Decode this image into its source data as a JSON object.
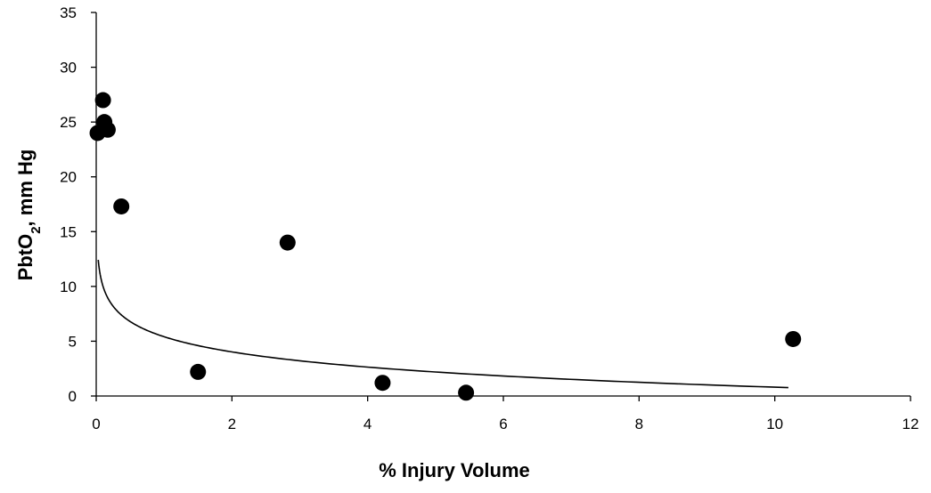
{
  "chart_data": {
    "type": "scatter",
    "xlabel": "% Injury Volume",
    "ylabel_main": "PbtO",
    "ylabel_sub": "2",
    "ylabel_tail": ", mm Hg",
    "xlim": [
      0,
      12
    ],
    "ylim": [
      0,
      35
    ],
    "x_ticks": [
      0,
      2,
      4,
      6,
      8,
      10,
      12
    ],
    "y_ticks": [
      0,
      5,
      10,
      15,
      20,
      25,
      30,
      35
    ],
    "grid": false,
    "legend": "none",
    "marker_color": "#000000",
    "points": [
      {
        "x": 0.02,
        "y": 24.0
      },
      {
        "x": 0.1,
        "y": 27.0
      },
      {
        "x": 0.12,
        "y": 25.0
      },
      {
        "x": 0.17,
        "y": 24.3
      },
      {
        "x": 0.37,
        "y": 17.3
      },
      {
        "x": 1.5,
        "y": 2.2
      },
      {
        "x": 2.82,
        "y": 14.0
      },
      {
        "x": 4.22,
        "y": 1.2
      },
      {
        "x": 5.45,
        "y": 0.3
      },
      {
        "x": 10.27,
        "y": 5.2
      }
    ],
    "trendline": {
      "type": "logarithmic",
      "a": 5.41,
      "b": -2.0,
      "x_range": [
        0.03,
        10.2
      ]
    }
  }
}
